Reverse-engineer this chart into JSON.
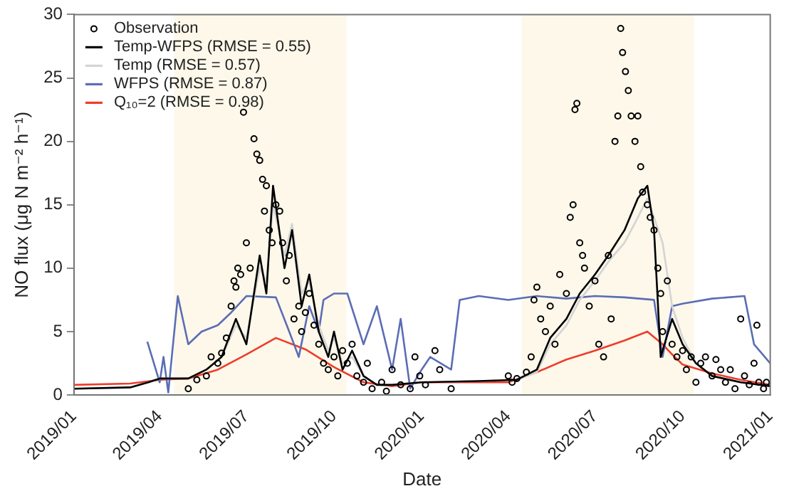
{
  "chart_data": {
    "type": "line",
    "xlabel": "Date",
    "ylabel": "NO flux (μg N m⁻² h⁻¹)",
    "xlim": [
      "2019-01",
      "2021-01"
    ],
    "xticks": [
      {
        "value": "2019-01",
        "label": "2019/01"
      },
      {
        "value": "2019-04",
        "label": "2019/04"
      },
      {
        "value": "2019-07",
        "label": "2019/07"
      },
      {
        "value": "2019-10",
        "label": "2019/10"
      },
      {
        "value": "2020-01",
        "label": "2020/01"
      },
      {
        "value": "2020-04",
        "label": "2020/04"
      },
      {
        "value": "2020-07",
        "label": "2020/07"
      },
      {
        "value": "2020-10",
        "label": "2020/10"
      },
      {
        "value": "2021-01",
        "label": "2021/01"
      }
    ],
    "ylim": [
      0,
      30
    ],
    "yticks": [
      0,
      5,
      10,
      15,
      20,
      25,
      30
    ],
    "grid": false,
    "legend": "top left",
    "bands": [
      {
        "axis": "x",
        "from": "2019-04-16",
        "to": "2019-10-14",
        "color": "#fdf8ea"
      },
      {
        "axis": "x",
        "from": "2020-04-15",
        "to": "2020-10-13",
        "color": "#fdf8ea"
      }
    ],
    "series": [
      {
        "name": "Observation",
        "type": "scatter",
        "marker": "circle",
        "color": "#000000",
        "x": [
          "2019-05-01",
          "2019-05-10",
          "2019-05-20",
          "2019-05-25",
          "2019-06-01",
          "2019-06-05",
          "2019-06-10",
          "2019-06-15",
          "2019-06-18",
          "2019-06-20",
          "2019-06-22",
          "2019-06-25",
          "2019-06-28",
          "2019-07-01",
          "2019-07-05",
          "2019-07-09",
          "2019-07-12",
          "2019-07-15",
          "2019-07-18",
          "2019-07-20",
          "2019-07-22",
          "2019-07-25",
          "2019-07-28",
          "2019-08-01",
          "2019-08-05",
          "2019-08-08",
          "2019-08-12",
          "2019-08-15",
          "2019-08-20",
          "2019-08-25",
          "2019-08-28",
          "2019-09-01",
          "2019-09-05",
          "2019-09-10",
          "2019-09-15",
          "2019-09-20",
          "2019-09-25",
          "2019-10-01",
          "2019-10-05",
          "2019-10-10",
          "2019-10-15",
          "2019-10-20",
          "2019-10-25",
          "2019-11-01",
          "2019-11-05",
          "2019-11-10",
          "2019-11-20",
          "2019-11-25",
          "2019-12-01",
          "2019-12-10",
          "2019-12-20",
          "2019-12-25",
          "2019-12-30",
          "2020-01-05",
          "2020-01-15",
          "2020-01-20",
          "2020-02-01",
          "2020-04-01",
          "2020-04-05",
          "2020-04-10",
          "2020-04-20",
          "2020-04-25",
          "2020-04-28",
          "2020-05-01",
          "2020-05-05",
          "2020-05-10",
          "2020-05-15",
          "2020-05-20",
          "2020-05-25",
          "2020-06-01",
          "2020-06-05",
          "2020-06-08",
          "2020-06-10",
          "2020-06-12",
          "2020-06-15",
          "2020-06-18",
          "2020-06-20",
          "2020-06-25",
          "2020-07-01",
          "2020-07-05",
          "2020-07-10",
          "2020-07-15",
          "2020-07-18",
          "2020-07-22",
          "2020-07-25",
          "2020-07-28",
          "2020-07-30",
          "2020-08-02",
          "2020-08-05",
          "2020-08-08",
          "2020-08-12",
          "2020-08-15",
          "2020-08-18",
          "2020-08-20",
          "2020-08-25",
          "2020-08-28",
          "2020-09-01",
          "2020-09-05",
          "2020-09-08",
          "2020-09-10",
          "2020-09-15",
          "2020-09-20",
          "2020-09-25",
          "2020-10-01",
          "2020-10-05",
          "2020-10-10",
          "2020-10-15",
          "2020-10-20",
          "2020-10-25",
          "2020-11-01",
          "2020-11-05",
          "2020-11-10",
          "2020-11-15",
          "2020-11-20",
          "2020-11-25",
          "2020-12-01",
          "2020-12-05",
          "2020-12-10",
          "2020-12-15",
          "2020-12-18",
          "2020-12-20",
          "2020-12-25",
          "2020-12-28"
        ],
        "values": [
          0.5,
          1.2,
          1.5,
          3,
          2.5,
          3.3,
          4.5,
          7,
          9,
          8.5,
          10,
          9.5,
          22.3,
          12,
          10,
          20.2,
          19,
          18.5,
          17,
          14.5,
          16.5,
          13,
          12,
          15,
          14.5,
          12,
          9,
          11,
          6,
          7,
          5,
          6.5,
          8,
          5.5,
          4,
          2.5,
          2,
          3,
          1.5,
          3.5,
          2.5,
          4,
          1.5,
          1,
          2.5,
          0.5,
          1,
          0.3,
          2,
          0.8,
          0.5,
          3,
          1.5,
          0.8,
          3.5,
          2,
          0.5,
          1.5,
          1,
          1.3,
          1.8,
          3,
          7.5,
          8.5,
          6,
          5,
          7,
          4,
          9.5,
          8,
          14,
          15,
          22.5,
          23,
          12,
          11,
          10,
          7,
          9,
          4,
          3,
          11,
          6,
          20,
          22,
          28.9,
          27,
          25.5,
          24,
          22,
          20,
          22,
          18,
          16,
          15,
          14,
          13,
          10,
          8,
          5,
          9,
          4,
          3,
          3.5,
          2,
          3,
          1,
          2.5,
          3,
          1.5,
          2.8,
          2,
          1,
          2,
          0.5,
          6,
          1.5,
          0.8,
          2.5,
          5.5,
          1,
          0.5,
          1
        ]
      },
      {
        "name": "Temp-WFPS (RMSE = 0.55)",
        "color": "#000000",
        "x": [
          "2019-01-01",
          "2019-03-01",
          "2019-03-20",
          "2019-04-01",
          "2019-05-01",
          "2019-05-20",
          "2019-06-05",
          "2019-06-20",
          "2019-07-01",
          "2019-07-15",
          "2019-07-22",
          "2019-07-29",
          "2019-08-10",
          "2019-08-18",
          "2019-08-28",
          "2019-09-05",
          "2019-09-15",
          "2019-09-25",
          "2019-10-01",
          "2019-10-10",
          "2019-10-20",
          "2019-11-01",
          "2019-11-15",
          "2019-12-01",
          "2020-01-01",
          "2020-03-01",
          "2020-04-10",
          "2020-05-01",
          "2020-05-15",
          "2020-06-01",
          "2020-06-15",
          "2020-07-01",
          "2020-07-15",
          "2020-08-01",
          "2020-08-15",
          "2020-08-25",
          "2020-09-01",
          "2020-09-08",
          "2020-09-20",
          "2020-10-01",
          "2020-10-15",
          "2020-11-01",
          "2020-12-01",
          "2021-01-01"
        ],
        "values": [
          0.5,
          0.6,
          1,
          1.3,
          1.3,
          2,
          3,
          6,
          4,
          11,
          8,
          16.5,
          10,
          13,
          7,
          9.5,
          5,
          3,
          5,
          2,
          3.5,
          1.5,
          0.8,
          0.8,
          1,
          1.1,
          1.2,
          2,
          4.5,
          6,
          8,
          9.5,
          11,
          13,
          15.5,
          16.5,
          13,
          3,
          6,
          4,
          2.5,
          1.5,
          1,
          0.7
        ]
      },
      {
        "name": "Temp (RMSE = 0.57)",
        "color": "#d4d4d4",
        "x": [
          "2019-01-01",
          "2019-03-01",
          "2019-03-20",
          "2019-04-01",
          "2019-05-01",
          "2019-05-20",
          "2019-06-05",
          "2019-06-20",
          "2019-07-01",
          "2019-07-15",
          "2019-07-22",
          "2019-07-29",
          "2019-08-10",
          "2019-08-18",
          "2019-08-28",
          "2019-09-05",
          "2019-09-15",
          "2019-09-25",
          "2019-10-01",
          "2019-10-10",
          "2019-10-20",
          "2019-11-01",
          "2019-11-15",
          "2019-12-01",
          "2020-01-01",
          "2020-03-01",
          "2020-04-10",
          "2020-05-01",
          "2020-05-15",
          "2020-06-01",
          "2020-06-15",
          "2020-07-01",
          "2020-07-15",
          "2020-08-01",
          "2020-08-15",
          "2020-08-25",
          "2020-09-01",
          "2020-09-10",
          "2020-09-20",
          "2020-10-01",
          "2020-10-15",
          "2020-11-01",
          "2020-12-01",
          "2021-01-01"
        ],
        "values": [
          0.5,
          0.6,
          1,
          1.3,
          1.3,
          2,
          3,
          5.5,
          4.5,
          10,
          9,
          15,
          11,
          13.5,
          8,
          9,
          5.5,
          3.5,
          4.5,
          2.5,
          3,
          1.5,
          0.8,
          0.8,
          1,
          1.1,
          1.2,
          1.8,
          4,
          5.5,
          7.5,
          9,
          10.5,
          12,
          14,
          15.5,
          14,
          12,
          7,
          4.5,
          2.5,
          1.5,
          1,
          0.7
        ]
      },
      {
        "name": "WFPS (RMSE = 0.87)",
        "color": "#5b6db5",
        "x": [
          "2019-03-19",
          "2019-04-01",
          "2019-04-05",
          "2019-04-10",
          "2019-04-20",
          "2019-05-01",
          "2019-05-15",
          "2019-06-01",
          "2019-06-15",
          "2019-07-01",
          "2019-08-01",
          "2019-08-15",
          "2019-08-25",
          "2019-09-05",
          "2019-09-15",
          "2019-09-20",
          "2019-10-01",
          "2019-10-15",
          "2019-11-01",
          "2019-11-15",
          "2019-12-01",
          "2019-12-10",
          "2019-12-20",
          "2020-01-01",
          "2020-01-10",
          "2020-02-01",
          "2020-02-10",
          "2020-03-01",
          "2020-04-01",
          "2020-05-01",
          "2020-06-01",
          "2020-07-01",
          "2020-08-01",
          "2020-09-01",
          "2020-09-10",
          "2020-09-20",
          "2020-10-01",
          "2020-11-01",
          "2020-12-05",
          "2020-12-15",
          "2021-01-01"
        ],
        "values": [
          4.2,
          1,
          3,
          0.2,
          7.8,
          4,
          5,
          5.5,
          6.5,
          7.8,
          7.7,
          5,
          3,
          7,
          5,
          7.5,
          8,
          8,
          4,
          7,
          2,
          6,
          0.5,
          2,
          3,
          2,
          7.5,
          7.8,
          7.5,
          7.8,
          7.6,
          7.8,
          7.7,
          7.5,
          3,
          7,
          7.2,
          7.6,
          7.8,
          4,
          2.5
        ]
      },
      {
        "name": "Q₁₀=2 (RMSE = 0.98)",
        "color": "#f03c2c",
        "x": [
          "2019-01-01",
          "2019-03-01",
          "2019-04-01",
          "2019-05-01",
          "2019-06-01",
          "2019-07-01",
          "2019-08-01",
          "2019-09-01",
          "2019-10-01",
          "2019-11-01",
          "2019-12-01",
          "2020-01-01",
          "2020-04-01",
          "2020-05-01",
          "2020-06-01",
          "2020-07-01",
          "2020-08-01",
          "2020-08-25",
          "2020-09-10",
          "2020-09-20",
          "2020-10-01",
          "2020-11-01",
          "2020-12-01",
          "2021-01-01"
        ],
        "values": [
          0.8,
          0.9,
          1.2,
          1.3,
          2,
          3.2,
          4.5,
          3.6,
          2.2,
          1,
          0.7,
          1,
          1,
          1.8,
          2.8,
          3.5,
          4.3,
          5,
          4,
          3.2,
          2.4,
          1.7,
          1.2,
          0.8
        ]
      }
    ]
  }
}
